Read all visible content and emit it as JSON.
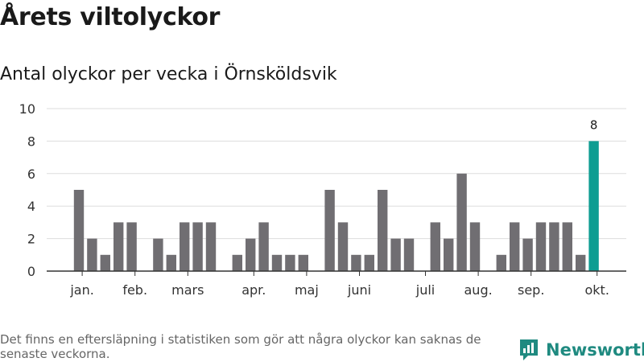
{
  "title": "Årets viltolyckor",
  "subtitle": "Antal olyckor per vecka i Örnsköldsvik",
  "footnote": "Det finns en eftersläpning i statistiken som gör att några olyckor kan saknas de senaste veckorna.",
  "logo": {
    "text": "Newsworthy",
    "icon": "newsworthy-logo-icon",
    "color": "#1f8a80"
  },
  "chart_data": {
    "type": "bar",
    "x_unit": "week",
    "x": [
      1,
      2,
      3,
      4,
      5,
      6,
      7,
      8,
      9,
      10,
      11,
      12,
      13,
      14,
      15,
      16,
      17,
      18,
      19,
      20,
      21,
      22,
      23,
      24,
      25,
      26,
      27,
      28,
      29,
      30,
      31,
      32,
      33,
      34,
      35,
      36,
      37,
      38,
      39,
      40,
      41
    ],
    "values": [
      5,
      2,
      1,
      3,
      3,
      0,
      2,
      1,
      3,
      3,
      3,
      0,
      1,
      2,
      3,
      1,
      1,
      1,
      0,
      5,
      3,
      1,
      1,
      5,
      2,
      2,
      0,
      3,
      2,
      6,
      3,
      0,
      1,
      3,
      2,
      3,
      3,
      3,
      1,
      8,
      0
    ],
    "highlight": {
      "x": 40,
      "value": 8,
      "label": "8"
    },
    "month_labels": [
      {
        "label": "jan.",
        "x": 1.25
      },
      {
        "label": "feb.",
        "x": 5.25
      },
      {
        "label": "mars",
        "x": 9.25
      },
      {
        "label": "apr.",
        "x": 14.25
      },
      {
        "label": "maj",
        "x": 18.25
      },
      {
        "label": "juni",
        "x": 22.25
      },
      {
        "label": "juli",
        "x": 27.25
      },
      {
        "label": "aug.",
        "x": 31.25
      },
      {
        "label": "sep.",
        "x": 35.25
      },
      {
        "label": "okt.",
        "x": 40.25
      }
    ],
    "y_ticks": [
      0,
      2,
      4,
      6,
      8,
      10
    ],
    "ylim": [
      0,
      10
    ],
    "grid": true,
    "colors": {
      "bar": "#706e72",
      "highlight": "#0e9d92",
      "grid": "#dddddd",
      "axis": "#333333"
    }
  }
}
